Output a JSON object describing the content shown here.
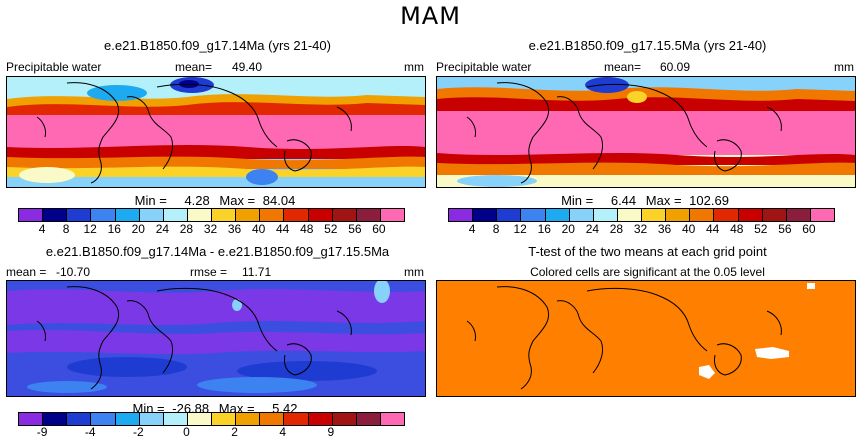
{
  "season": "MAM",
  "panel1": {
    "title": "e.e21.B1850.f09_g17.14Ma (yrs 21-40)",
    "var_label": "Precipitable water",
    "mean_label": "mean=",
    "mean_value": "49.40",
    "units": "mm",
    "min_label": "Min =",
    "min_value": "4.28",
    "max_label": "Max =",
    "max_value": "84.04"
  },
  "panel2": {
    "title": "e.e21.B1850.f09_g17.15.5Ma (yrs 21-40)",
    "var_label": "Precipitable water",
    "mean_label": "mean=",
    "mean_value": "60.09",
    "units": "mm",
    "min_label": "Min =",
    "min_value": "6.44",
    "max_label": "Max =",
    "max_value": "102.69"
  },
  "panel3": {
    "title": "e.e21.B1850.f09_g17.14Ma - e.e21.B1850.f09_g17.15.5Ma",
    "mean_label": "mean =",
    "mean_value": "-10.70",
    "rmse_label": "rmse =",
    "rmse_value": "11.71",
    "units": "mm",
    "min_label": "Min =",
    "min_value": "-26.88",
    "max_label": "Max =",
    "max_value": "5.42"
  },
  "panel4": {
    "title": "T-test of the two means at each grid point",
    "subtitle": "Colored cells are significant at the 0.05 level"
  },
  "colorbar_abs": {
    "colors": [
      "#8a2be2",
      "#00008b",
      "#1e3cd2",
      "#3c82f0",
      "#1eaaf0",
      "#87d2fa",
      "#b4f0fa",
      "#fafac8",
      "#fad228",
      "#f0a000",
      "#f07800",
      "#e12800",
      "#c80000",
      "#a01414",
      "#8b1e3c",
      "#ff69b4"
    ],
    "ticks": [
      "4",
      "8",
      "12",
      "16",
      "20",
      "24",
      "28",
      "32",
      "36",
      "40",
      "44",
      "48",
      "52",
      "56",
      "60"
    ]
  },
  "colorbar_diff": {
    "colors": [
      "#8a2be2",
      "#00008b",
      "#1e3cd2",
      "#3c82f0",
      "#1eaaf0",
      "#87d2fa",
      "#b4f0fa",
      "#fafac8",
      "#fad228",
      "#f0a000",
      "#f07800",
      "#e12800",
      "#c80000",
      "#a01414",
      "#8b1e3c",
      "#ff69b4"
    ],
    "ticks": [
      "-9",
      "-4",
      "-2",
      "0",
      "2",
      "4",
      "9"
    ],
    "tick_boundaries": [
      1,
      3,
      5,
      7,
      9,
      11,
      13
    ]
  },
  "colors": {
    "ttest_fill": "#ff7f00",
    "diff_base": "#7b38e6"
  }
}
